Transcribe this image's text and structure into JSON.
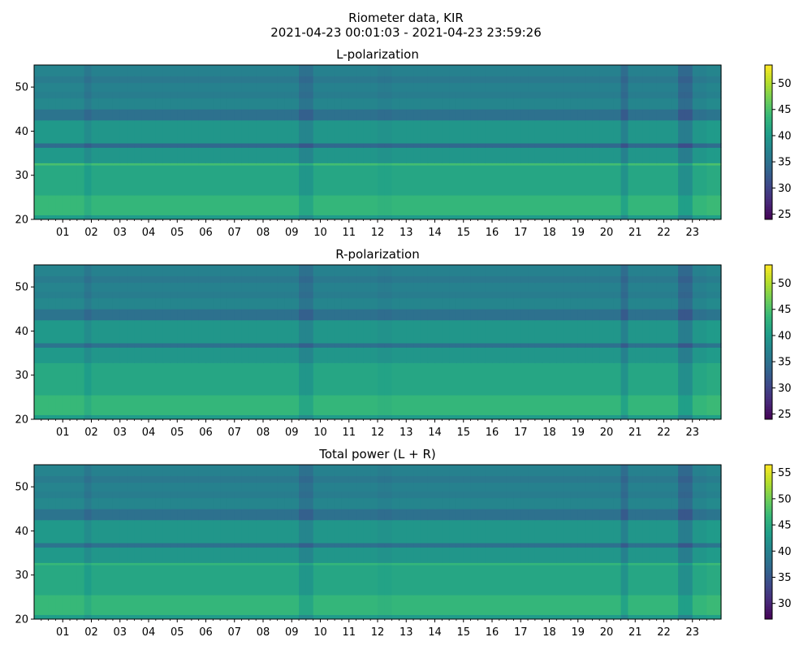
{
  "figure": {
    "title_line1": "Riometer data, KIR",
    "title_line2": "2021-04-23 00:01:03 - 2021-04-23 23:59:26"
  },
  "colormap": "viridis",
  "chart_data": [
    {
      "type": "heatmap",
      "title": "L-polarization",
      "x_ticks": [
        "01",
        "02",
        "03",
        "04",
        "05",
        "06",
        "07",
        "08",
        "09",
        "10",
        "11",
        "12",
        "13",
        "14",
        "15",
        "16",
        "17",
        "18",
        "19",
        "20",
        "21",
        "22",
        "23"
      ],
      "x_range_hours": [
        0,
        24
      ],
      "ylim": [
        20,
        55
      ],
      "y_ticks": [
        20,
        30,
        40,
        50
      ],
      "colorbar": {
        "range": [
          24,
          53.5
        ],
        "ticks": [
          25,
          30,
          35,
          40,
          45,
          50
        ]
      },
      "bands": [
        {
          "y": [
            20,
            21
          ],
          "value": 40
        },
        {
          "y": [
            21,
            25.5
          ],
          "value": 43.5
        },
        {
          "y": [
            25.5,
            32.3
          ],
          "value": 41.5
        },
        {
          "y": [
            32.3,
            32.8
          ],
          "value": 44.5
        },
        {
          "y": [
            32.8,
            36.3
          ],
          "value": 39.5
        },
        {
          "y": [
            36.3,
            37.3
          ],
          "value": 34
        },
        {
          "y": [
            37.3,
            42.5
          ],
          "value": 39.5
        },
        {
          "y": [
            42.5,
            45
          ],
          "value": 35
        },
        {
          "y": [
            45,
            47.5
          ],
          "value": 37.5
        },
        {
          "y": [
            47.5,
            49
          ],
          "value": 36.5
        },
        {
          "y": [
            49,
            51
          ],
          "value": 37
        },
        {
          "y": [
            51,
            52.5
          ],
          "value": 36
        },
        {
          "y": [
            52.5,
            55
          ],
          "value": 37
        }
      ],
      "time_modulation": [
        {
          "t": [
            0,
            1.8
          ],
          "delta": 0.3
        },
        {
          "t": [
            1.8,
            2.0
          ],
          "delta": -1.2
        },
        {
          "t": [
            9.3,
            9.8
          ],
          "delta": -2.0
        },
        {
          "t": [
            12.0,
            12.5
          ],
          "delta": -0.5
        },
        {
          "t": [
            16.4,
            16.6
          ],
          "delta": -1.0
        },
        {
          "t": [
            20.5,
            20.8
          ],
          "delta": -2.5
        },
        {
          "t": [
            22.6,
            23.0
          ],
          "delta": -3.0
        },
        {
          "t": [
            23.5,
            24
          ],
          "delta": 0.5
        }
      ]
    },
    {
      "type": "heatmap",
      "title": "R-polarization",
      "x_ticks": [
        "01",
        "02",
        "03",
        "04",
        "05",
        "06",
        "07",
        "08",
        "09",
        "10",
        "11",
        "12",
        "13",
        "14",
        "15",
        "16",
        "17",
        "18",
        "19",
        "20",
        "21",
        "22",
        "23"
      ],
      "x_range_hours": [
        0,
        24
      ],
      "ylim": [
        20,
        55
      ],
      "y_ticks": [
        20,
        30,
        40,
        50
      ],
      "colorbar": {
        "range": [
          24,
          53.5
        ],
        "ticks": [
          25,
          30,
          35,
          40,
          45,
          50
        ]
      },
      "bands": [
        {
          "y": [
            20,
            21
          ],
          "value": 40
        },
        {
          "y": [
            21,
            25.5
          ],
          "value": 43.5
        },
        {
          "y": [
            25.5,
            32.8
          ],
          "value": 41.5
        },
        {
          "y": [
            32.8,
            36.3
          ],
          "value": 39.5
        },
        {
          "y": [
            36.3,
            37.3
          ],
          "value": 35
        },
        {
          "y": [
            37.3,
            42.5
          ],
          "value": 39.5
        },
        {
          "y": [
            42.5,
            45
          ],
          "value": 35
        },
        {
          "y": [
            45,
            47.5
          ],
          "value": 37.5
        },
        {
          "y": [
            47.5,
            49
          ],
          "value": 36.5
        },
        {
          "y": [
            49,
            51
          ],
          "value": 37
        },
        {
          "y": [
            51,
            52.5
          ],
          "value": 36
        },
        {
          "y": [
            52.5,
            55
          ],
          "value": 37
        }
      ],
      "time_modulation": [
        {
          "t": [
            0,
            1.8
          ],
          "delta": 0.3
        },
        {
          "t": [
            1.8,
            2.0
          ],
          "delta": -1.2
        },
        {
          "t": [
            9.3,
            9.8
          ],
          "delta": -2.0
        },
        {
          "t": [
            12.0,
            12.5
          ],
          "delta": -0.5
        },
        {
          "t": [
            16.4,
            16.6
          ],
          "delta": -1.0
        },
        {
          "t": [
            20.5,
            20.8
          ],
          "delta": -2.5
        },
        {
          "t": [
            22.6,
            23.0
          ],
          "delta": -3.0
        },
        {
          "t": [
            23.5,
            24
          ],
          "delta": 0.5
        }
      ]
    },
    {
      "type": "heatmap",
      "title": "Total power (L + R)",
      "x_ticks": [
        "01",
        "02",
        "03",
        "04",
        "05",
        "06",
        "07",
        "08",
        "09",
        "10",
        "11",
        "12",
        "13",
        "14",
        "15",
        "16",
        "17",
        "18",
        "19",
        "20",
        "21",
        "22",
        "23"
      ],
      "x_range_hours": [
        0,
        24
      ],
      "ylim": [
        20,
        55
      ],
      "y_ticks": [
        20,
        30,
        40,
        50
      ],
      "colorbar": {
        "range": [
          27,
          56.5
        ],
        "ticks": [
          30,
          35,
          40,
          45,
          50,
          55
        ]
      },
      "bands": [
        {
          "y": [
            20,
            21
          ],
          "value": 43
        },
        {
          "y": [
            21,
            25.5
          ],
          "value": 46.5
        },
        {
          "y": [
            25.5,
            32.3
          ],
          "value": 44.5
        },
        {
          "y": [
            32.3,
            32.8
          ],
          "value": 46.5
        },
        {
          "y": [
            32.8,
            36.3
          ],
          "value": 42.5
        },
        {
          "y": [
            36.3,
            37.3
          ],
          "value": 38
        },
        {
          "y": [
            37.3,
            42.5
          ],
          "value": 42.5
        },
        {
          "y": [
            42.5,
            45
          ],
          "value": 38
        },
        {
          "y": [
            45,
            47.5
          ],
          "value": 40.5
        },
        {
          "y": [
            47.5,
            49
          ],
          "value": 39.5
        },
        {
          "y": [
            49,
            51
          ],
          "value": 40
        },
        {
          "y": [
            51,
            52.5
          ],
          "value": 39
        },
        {
          "y": [
            52.5,
            55
          ],
          "value": 40
        }
      ],
      "time_modulation": [
        {
          "t": [
            0,
            1.8
          ],
          "delta": 0.3
        },
        {
          "t": [
            1.8,
            2.0
          ],
          "delta": -1.2
        },
        {
          "t": [
            9.3,
            9.8
          ],
          "delta": -2.0
        },
        {
          "t": [
            12.0,
            12.5
          ],
          "delta": -0.5
        },
        {
          "t": [
            16.4,
            16.6
          ],
          "delta": -1.0
        },
        {
          "t": [
            20.5,
            20.8
          ],
          "delta": -2.5
        },
        {
          "t": [
            22.6,
            23.0
          ],
          "delta": -3.0
        },
        {
          "t": [
            23.5,
            24
          ],
          "delta": 0.5
        }
      ]
    }
  ]
}
